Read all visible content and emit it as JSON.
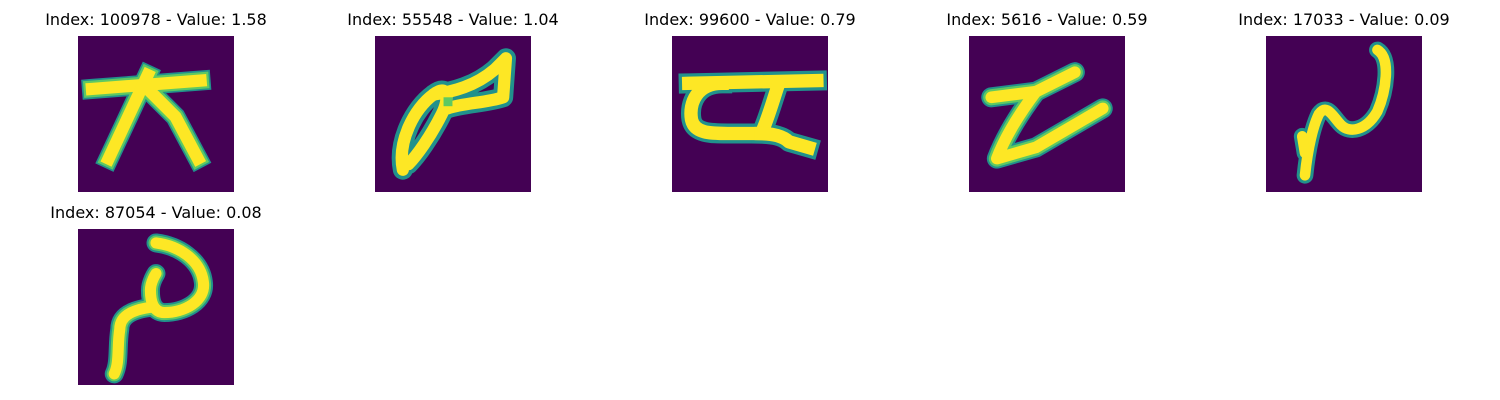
{
  "figure": {
    "colors": {
      "background": "#440154",
      "stroke_core": "#fde725",
      "stroke_mid": "#5ec962",
      "stroke_edge": "#21918c"
    },
    "panels": [
      {
        "title": "Index: 100978 - Value: 1.58",
        "glyph": "x-bar-glyph"
      },
      {
        "title": "Index: 55548 - Value: 1.04",
        "glyph": "leaf-loop-glyph"
      },
      {
        "title": "Index: 99600 - Value: 0.79",
        "glyph": "alpha-bar-glyph"
      },
      {
        "title": "Index: 5616 - Value: 0.59",
        "glyph": "zig-glyph"
      },
      {
        "title": "Index: 17033 - Value: 0.09",
        "glyph": "hook-glyph-a"
      },
      {
        "title": "Index: 87054 - Value: 0.08",
        "glyph": "hook-glyph-b"
      }
    ]
  }
}
